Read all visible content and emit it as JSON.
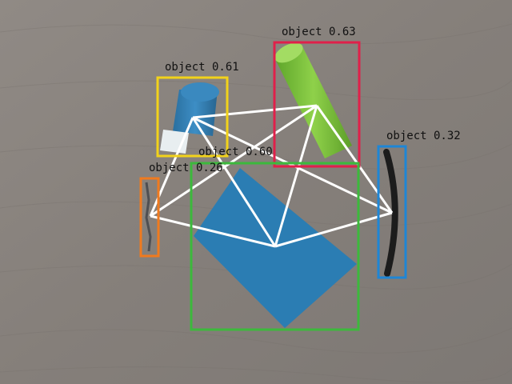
{
  "detections": [
    {
      "label": "object 0.63",
      "color": "#e0204a",
      "object": "green-tube"
    },
    {
      "label": "object 0.61",
      "color": "#f2d21a",
      "object": "blue-bottle"
    },
    {
      "label": "object 0.60",
      "color": "#3cb93c",
      "object": "blue-square-tile"
    },
    {
      "label": "object 0.26",
      "color": "#f07a1e",
      "object": "wire-piece"
    },
    {
      "label": "object 0.32",
      "color": "#1e86d6",
      "object": "black-cable"
    }
  ],
  "overlay": {
    "line_color": "#ffffff",
    "description": "white keypoint graph connecting detected objects"
  },
  "colors": {
    "table_wood": "#8a8580",
    "tile": "#2b7db3",
    "tube": "#7cc23a",
    "bottle": "#2f7fb6"
  }
}
